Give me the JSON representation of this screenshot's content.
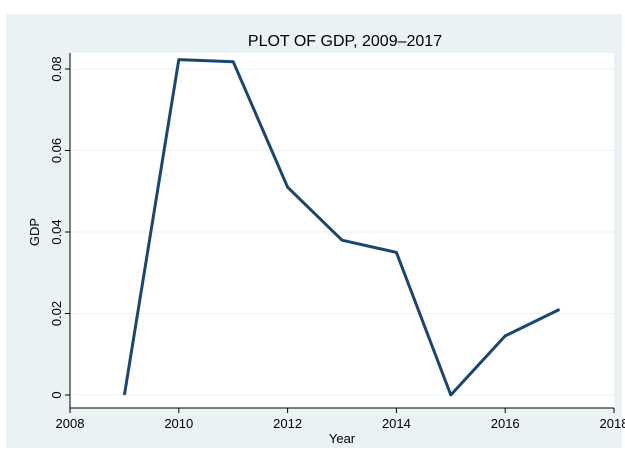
{
  "chart_data": {
    "type": "line",
    "title": "PLOT OF GDP, 2009–2017",
    "xlabel": "Year",
    "ylabel": "GDP",
    "x": [
      2009,
      2010,
      2011,
      2012,
      2013,
      2014,
      2015,
      2016,
      2017
    ],
    "series": [
      {
        "values": [
          0,
          0.0823,
          0.0818,
          0.051,
          0.038,
          0.035,
          0,
          0.0145,
          0.021
        ]
      }
    ],
    "xlim": [
      2008,
      2018
    ],
    "ylim": [
      0,
      0.085
    ],
    "xticks": [
      2008,
      2010,
      2012,
      2014,
      2016,
      2018
    ],
    "yticks": [
      {
        "value": 0,
        "label": "0"
      },
      {
        "value": 0.02,
        "label": "0.02"
      },
      {
        "value": 0.04,
        "label": "0.04"
      },
      {
        "value": 0.06,
        "label": "0.06"
      },
      {
        "value": 0.08,
        "label": "0.08"
      }
    ],
    "grid": true,
    "line_color": "#1a476f",
    "background_color": "#eaf2f3",
    "plot_background_color": "#ffffff",
    "grid_color": "#eaf2f3"
  }
}
